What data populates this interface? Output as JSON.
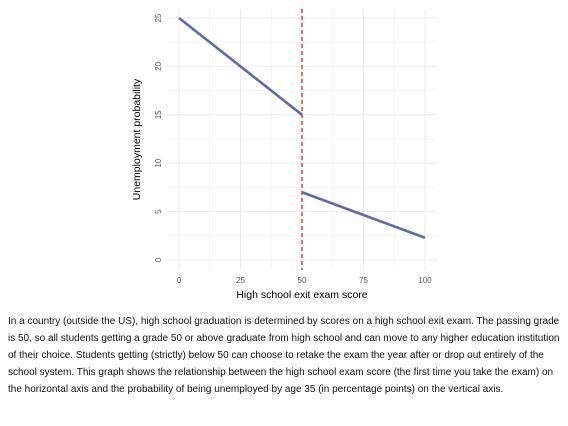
{
  "chart_data": {
    "type": "line",
    "title": "",
    "xlabel": "High school exit exam score",
    "ylabel": "Unemployment probability",
    "xlim": [
      0,
      100
    ],
    "ylim": [
      0,
      25
    ],
    "xticks": [
      0,
      25,
      50,
      75,
      100
    ],
    "yticks": [
      0,
      5,
      10,
      15,
      20,
      25
    ],
    "grid": true,
    "series": [
      {
        "values": [
          {
            "x": 0,
            "y": 25
          },
          {
            "x": 50,
            "y": 15
          }
        ]
      },
      {
        "values": [
          {
            "x": 50,
            "y": 7
          },
          {
            "x": 100,
            "y": 2.3
          }
        ]
      }
    ],
    "cutoff": {
      "x": 50,
      "style": "dashed"
    },
    "colors": {
      "line": "#5b6aa8",
      "cutoff": "#d9432b",
      "grid": "#ebebeb"
    }
  },
  "caption": "In a country (outside the US), high school graduation is determined by scores on a high school exit exam. The passing grade is 50, so all students getting a grade 50 or above graduate from high school and can move to any higher education institution of their choice. Students getting (strictly) below 50 can choose to retake the exam the year after or drop out entirely of the school system. This graph shows the relationship between the high school exam score (the first time you take the exam) on the horizontal axis and the probability of being unemployed by age 35 (in percentage points) on the vertical axis."
}
